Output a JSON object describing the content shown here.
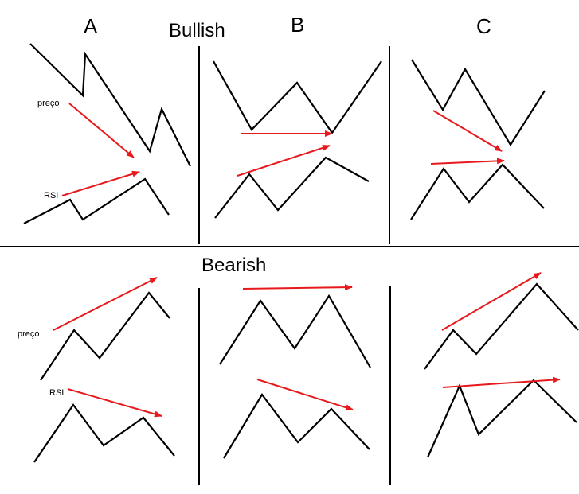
{
  "panel_labels": {
    "a": "A",
    "b": "B",
    "c": "C"
  },
  "section_titles": {
    "bullish": "Bullish",
    "bearish": "Bearish"
  },
  "series_labels": {
    "price": "preço",
    "rsi": "RSI"
  },
  "colors": {
    "line": "#000000",
    "arrow": "#e8191c",
    "background": "#ffffff"
  }
}
